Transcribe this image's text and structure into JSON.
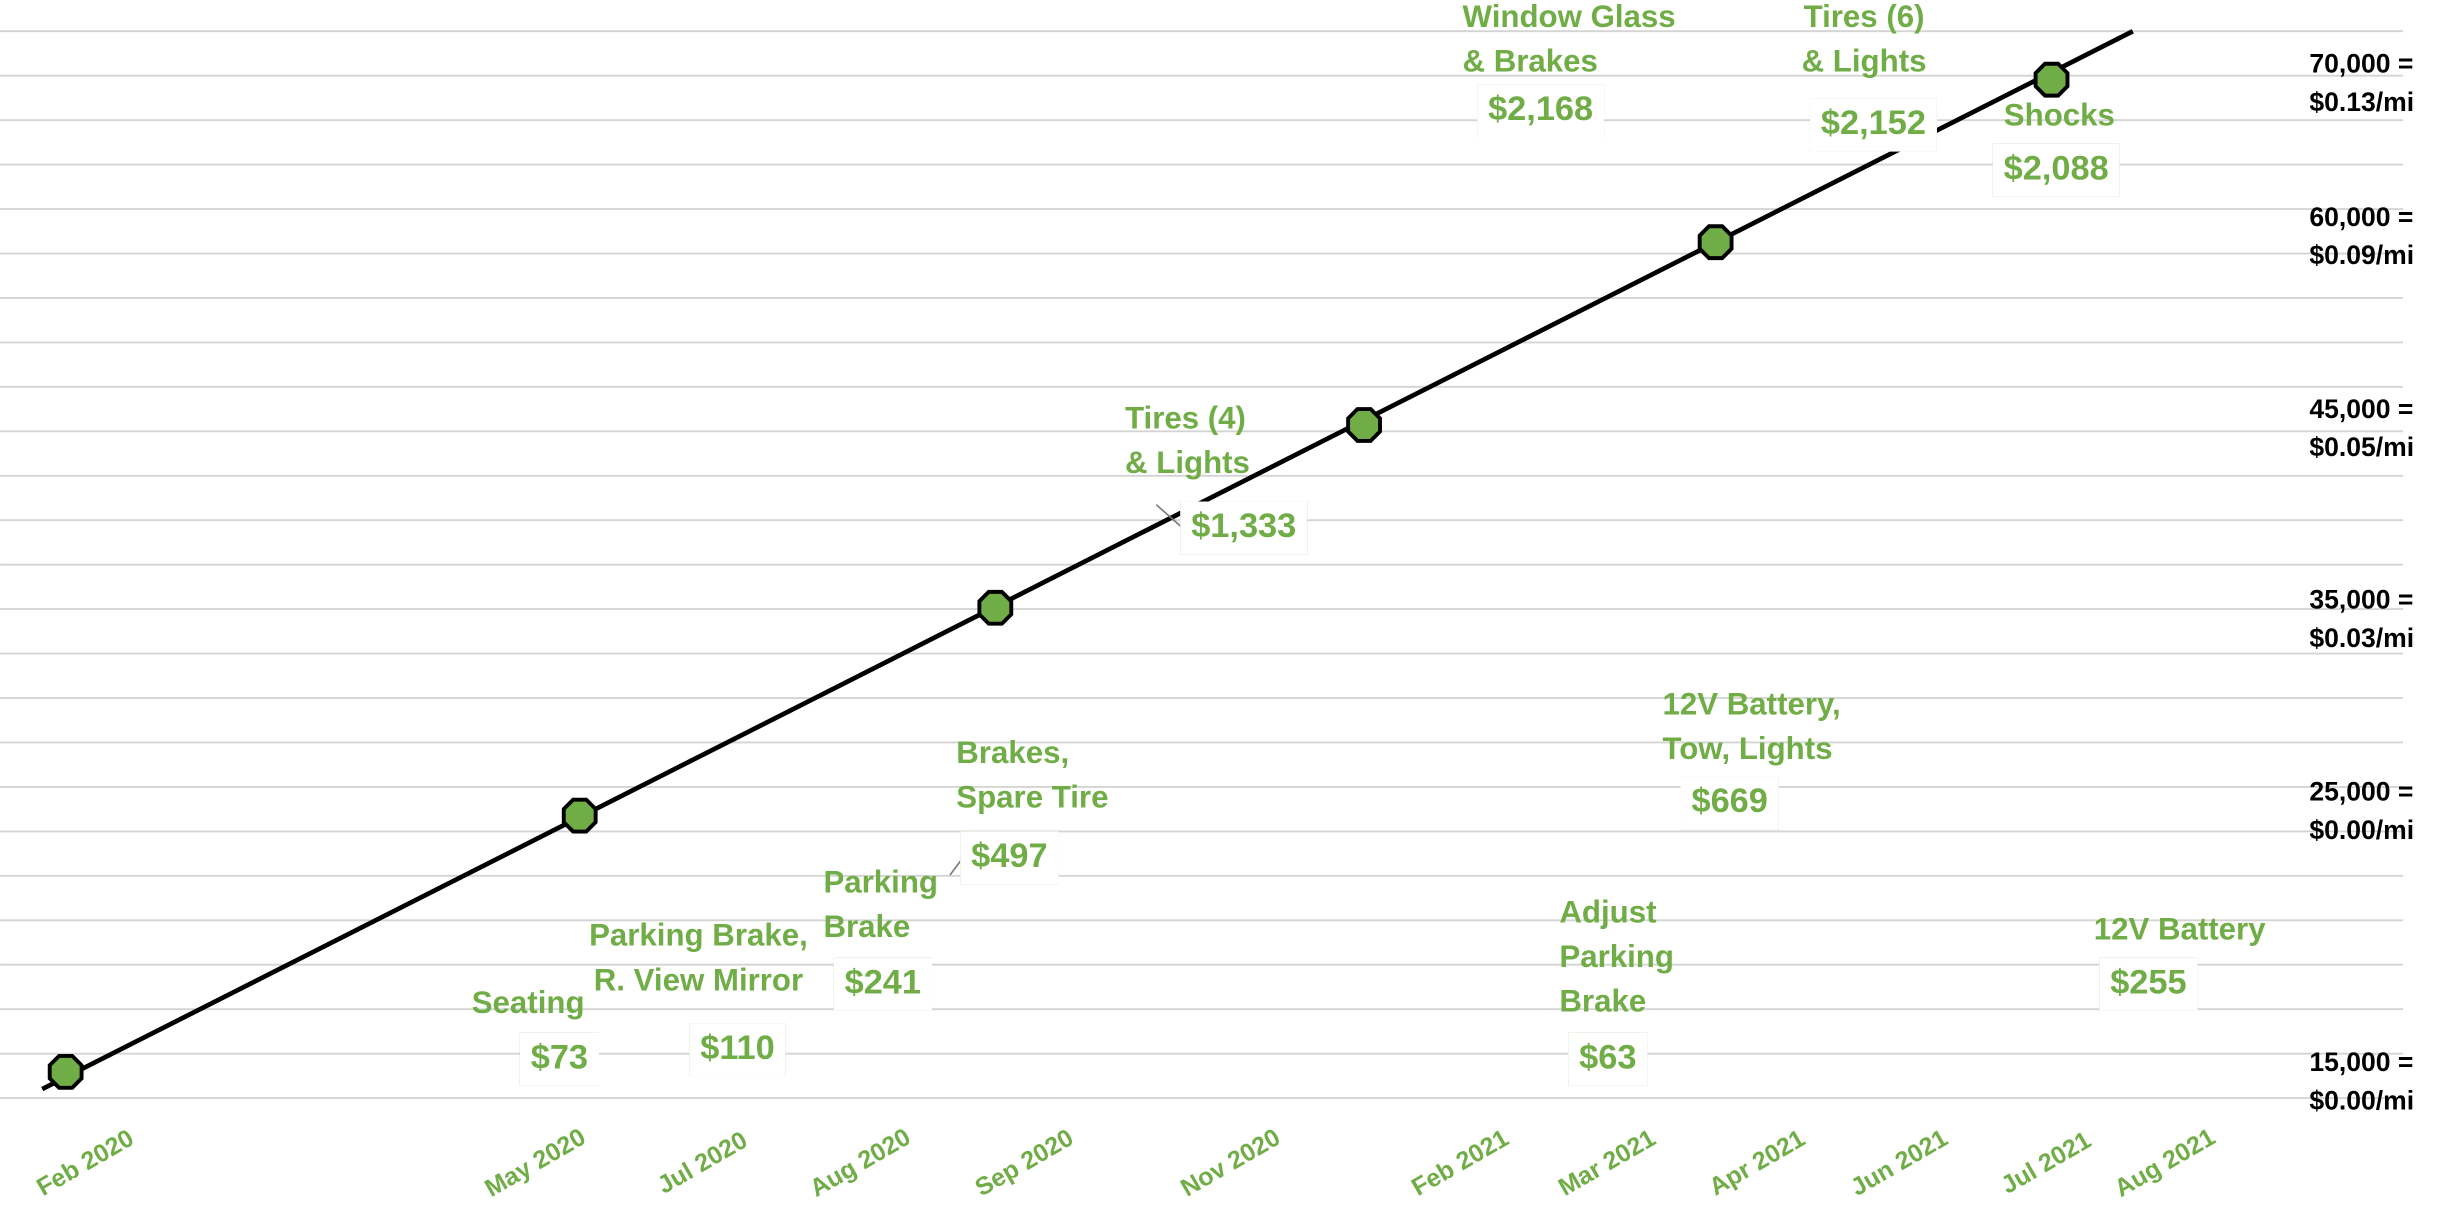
{
  "milestones": [
    {
      "lines": [
        "70,000 =",
        "$0.13/mi"
      ]
    },
    {
      "lines": [
        "60,000 =",
        "$0.09/mi"
      ]
    },
    {
      "lines": [
        "45,000 =",
        "$0.05/mi"
      ]
    },
    {
      "lines": [
        "35,000 =",
        "$0.03/mi"
      ]
    },
    {
      "lines": [
        "25,000 =",
        "$0.00/mi"
      ]
    },
    {
      "lines": [
        "15,000 =",
        "$0.00/mi"
      ]
    }
  ],
  "expenses": [
    {
      "title": [
        "Seating"
      ],
      "amount": "$73"
    },
    {
      "title": [
        "Parking Brake,",
        "R. View Mirror"
      ],
      "amount": "$110"
    },
    {
      "title": [
        "Parking",
        "Brake"
      ],
      "amount": "$241"
    },
    {
      "title": [
        "Brakes,",
        "Spare Tire"
      ],
      "amount": "$497"
    },
    {
      "title": [
        "Tires (4)",
        "& Lights"
      ],
      "amount": "$1,333"
    },
    {
      "title": [
        "Window Glass",
        "& Brakes"
      ],
      "amount": "$2,168"
    },
    {
      "title": [
        "Tires (6)",
        "& Lights"
      ],
      "amount": "$2,152"
    },
    {
      "title": [
        "Shocks"
      ],
      "amount": "$2,088"
    },
    {
      "title": [
        "12V Battery,",
        "Tow, Lights"
      ],
      "amount": "$669"
    },
    {
      "title": [
        "Adjust",
        "Parking",
        "Brake"
      ],
      "amount": "$63"
    },
    {
      "title": [
        "12V Battery"
      ],
      "amount": "$255"
    }
  ],
  "months": [
    "Feb 2020",
    "May 2020",
    "Jul 2020",
    "Aug 2020",
    "Sep 2020",
    "Nov 2020",
    "Feb 2021",
    "Mar 2021",
    "Apr 2021",
    "Jun 2021",
    "Jul 2021",
    "Aug 2021"
  ]
}
